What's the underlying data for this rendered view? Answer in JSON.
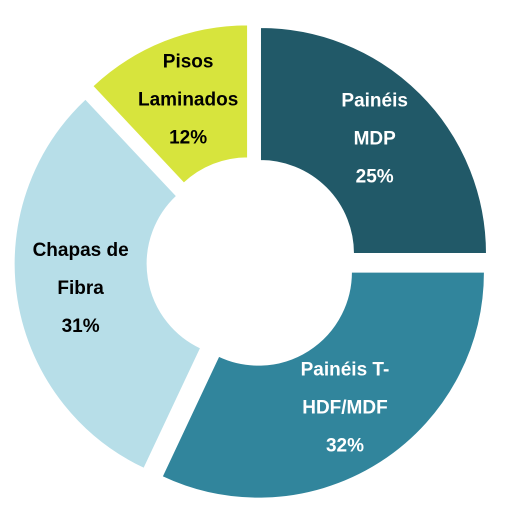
{
  "chart_data": {
    "type": "donut",
    "categories": [
      "Painéis MDP",
      "Painéis T-HDF/MDF",
      "Chapas de Fibra",
      "Pisos Laminados"
    ],
    "values": [
      25,
      32,
      31,
      12
    ],
    "value_labels": [
      "25%",
      "32%",
      "31%",
      "12%"
    ],
    "colors": [
      "#215968",
      "#31859c",
      "#b7dee8",
      "#d7e43d"
    ],
    "label_colors": [
      "#ffffff",
      "#ffffff",
      "#000000",
      "#000000"
    ]
  }
}
